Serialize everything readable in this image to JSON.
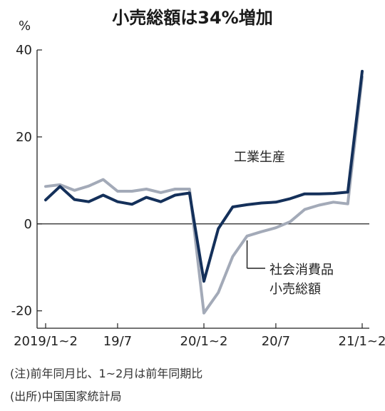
{
  "chart_data": {
    "type": "line",
    "title": "小売総額は34%増加",
    "y_unit_label": "%",
    "ylim": [
      -24,
      40
    ],
    "y_ticks": [
      -20,
      0,
      20,
      40
    ],
    "y_tick_labels": [
      "-20",
      "0",
      "20",
      "40"
    ],
    "x_tick_labels": [
      "2019/1~2",
      "19/7",
      "20/1~2",
      "20/7",
      "21/1~2"
    ],
    "x_tick_positions": [
      0,
      5,
      11,
      16,
      22
    ],
    "zero_line": true,
    "grid": false,
    "series": [
      {
        "name": "工業生産",
        "color": "#14305a",
        "values": [
          5.5,
          8.6,
          5.6,
          5.1,
          6.6,
          5.1,
          4.5,
          6.1,
          5.1,
          6.6,
          7.1,
          -13.2,
          -1.1,
          3.9,
          4.4,
          4.8,
          5.0,
          5.8,
          6.9,
          6.9,
          7.0,
          7.3,
          35.1
        ]
      },
      {
        "name": "社会消費品小売総額",
        "color": "#a3aab8",
        "values": [
          8.6,
          9.0,
          7.7,
          8.7,
          10.2,
          7.5,
          7.5,
          8.0,
          7.2,
          8.0,
          8.0,
          -20.5,
          -15.8,
          -7.5,
          -2.8,
          -1.8,
          -0.9,
          0.5,
          3.3,
          4.3,
          5.0,
          4.6,
          33.8
        ]
      }
    ],
    "annotations": {
      "industrial": "工業生産",
      "retail_line1": "社会消費品",
      "retail_line2": "小売総額"
    }
  },
  "notes": {
    "note1": "(注)前年同月比、1~2月は前年同期比",
    "note2": "(出所)中国国家統計局"
  }
}
